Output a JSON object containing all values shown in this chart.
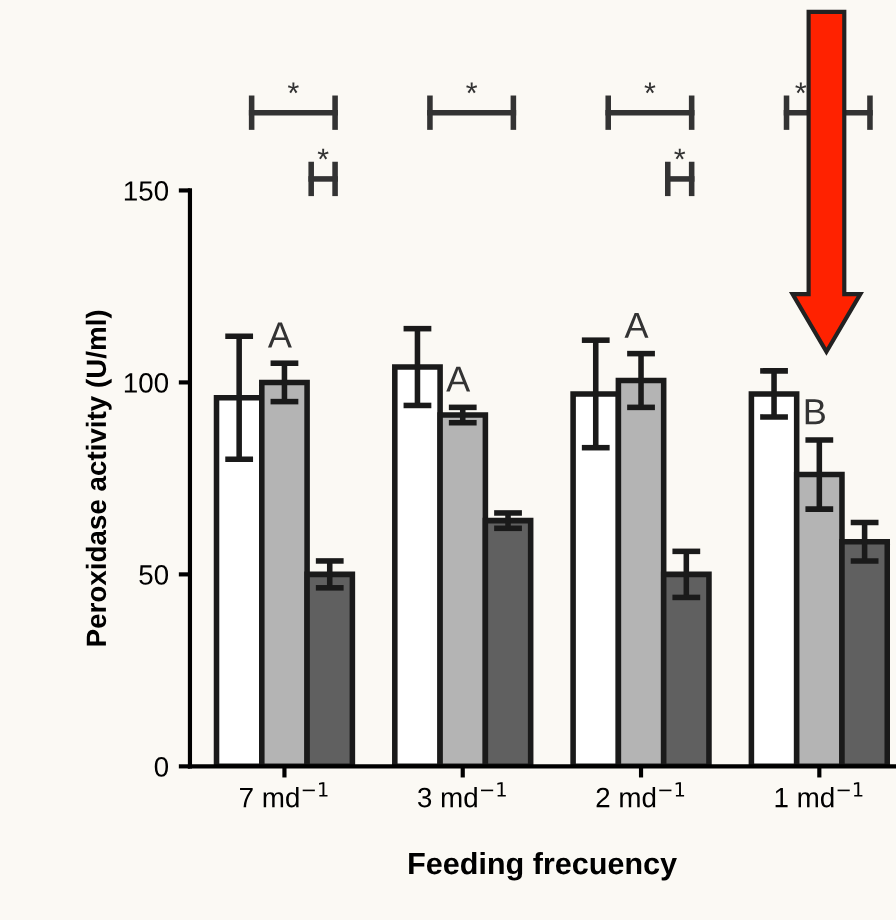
{
  "chart_data": {
    "type": "bar",
    "xlabel": "Feeding frecuency",
    "ylabel": "Peroxidase activity (U/ml)",
    "categories": [
      "7 md$^{−1}$",
      "3 md$^{−1}$",
      "2 md$^{−1}$",
      "1 md$^{−1}$"
    ],
    "series": [
      {
        "color": "#ffffff",
        "values": [
          96,
          104,
          97,
          97
        ],
        "errors": [
          16,
          10,
          14,
          6
        ]
      },
      {
        "color": "#b4b4b4",
        "values": [
          100,
          91.5,
          100.5,
          76
        ],
        "errors": [
          5,
          2,
          7,
          9
        ]
      },
      {
        "color": "#606060",
        "values": [
          50,
          64,
          50,
          58.5
        ],
        "errors": [
          3.5,
          2,
          6,
          5
        ]
      }
    ],
    "ylim": [
      0,
      150
    ],
    "yticks": [
      0,
      50,
      100,
      150
    ],
    "annotations": [
      "A",
      "A",
      "A",
      "B",
      "*",
      "*",
      "*",
      "*",
      "*",
      "*"
    ]
  }
}
